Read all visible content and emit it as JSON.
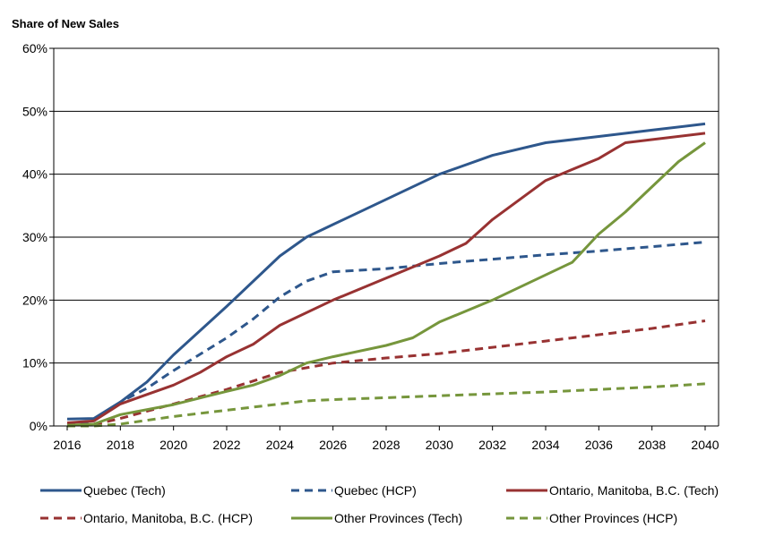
{
  "chart_data": {
    "type": "line",
    "ylabel": "Share of New Sales",
    "xlabel": "",
    "title": "",
    "xlim": [
      2016,
      2040
    ],
    "ylim": [
      0,
      60
    ],
    "x_ticks": [
      "2016",
      "2018",
      "2020",
      "2022",
      "2024",
      "2026",
      "2028",
      "2030",
      "2032",
      "2034",
      "2036",
      "2038",
      "2040"
    ],
    "y_ticks": [
      "0%",
      "10%",
      "20%",
      "30%",
      "40%",
      "50%",
      "60%"
    ],
    "grid": "horizontal",
    "legend_position": "bottom",
    "series": [
      {
        "name": "Quebec (Tech)",
        "color": "#2E578C",
        "dash": "solid",
        "points": [
          [
            2016,
            1.1
          ],
          [
            2017,
            1.2
          ],
          [
            2018,
            3.8
          ],
          [
            2019,
            7
          ],
          [
            2020,
            11.3
          ],
          [
            2022,
            19
          ],
          [
            2024,
            27
          ],
          [
            2025,
            30
          ],
          [
            2026,
            32
          ],
          [
            2028,
            36
          ],
          [
            2030,
            40
          ],
          [
            2032,
            43
          ],
          [
            2034,
            45
          ],
          [
            2036,
            46
          ],
          [
            2038,
            47
          ],
          [
            2040,
            48
          ]
        ]
      },
      {
        "name": "Quebec (HCP)",
        "color": "#2E578C",
        "dash": "dashed",
        "points": [
          [
            2016,
            0.2
          ],
          [
            2017,
            0.8
          ],
          [
            2018,
            3.8
          ],
          [
            2019,
            6
          ],
          [
            2020,
            8.8
          ],
          [
            2022,
            14
          ],
          [
            2023,
            17
          ],
          [
            2024,
            20.5
          ],
          [
            2025,
            23
          ],
          [
            2026,
            24.5
          ],
          [
            2028,
            25
          ],
          [
            2030,
            25.8
          ],
          [
            2032,
            26.5
          ],
          [
            2034,
            27.2
          ],
          [
            2036,
            27.8
          ],
          [
            2038,
            28.5
          ],
          [
            2040,
            29.2
          ]
        ]
      },
      {
        "name": "Ontario, Manitoba, B.C. (Tech)",
        "color": "#983232",
        "dash": "solid",
        "points": [
          [
            2016,
            0.5
          ],
          [
            2017,
            0.8
          ],
          [
            2018,
            3.5
          ],
          [
            2019,
            5
          ],
          [
            2020,
            6.5
          ],
          [
            2021,
            8.5
          ],
          [
            2022,
            11
          ],
          [
            2023,
            13
          ],
          [
            2024,
            16
          ],
          [
            2026,
            20
          ],
          [
            2028,
            23.5
          ],
          [
            2030,
            27
          ],
          [
            2031,
            29
          ],
          [
            2032,
            32.8
          ],
          [
            2034,
            39
          ],
          [
            2036,
            42.5
          ],
          [
            2037,
            45
          ],
          [
            2040,
            46.5
          ]
        ]
      },
      {
        "name": "Ontario, Manitoba, B.C. (HCP)",
        "color": "#983232",
        "dash": "dashed",
        "points": [
          [
            2016,
            0.1
          ],
          [
            2017,
            0.2
          ],
          [
            2018,
            1.2
          ],
          [
            2020,
            3.5
          ],
          [
            2022,
            5.8
          ],
          [
            2024,
            8.5
          ],
          [
            2026,
            10
          ],
          [
            2028,
            10.8
          ],
          [
            2030,
            11.5
          ],
          [
            2032,
            12.5
          ],
          [
            2034,
            13.5
          ],
          [
            2036,
            14.5
          ],
          [
            2038,
            15.5
          ],
          [
            2040,
            16.7
          ]
        ]
      },
      {
        "name": "Other Provinces (Tech)",
        "color": "#76963C",
        "dash": "solid",
        "points": [
          [
            2016,
            0.1
          ],
          [
            2017,
            0.3
          ],
          [
            2018,
            1.8
          ],
          [
            2020,
            3.4
          ],
          [
            2022,
            5.5
          ],
          [
            2023,
            6.5
          ],
          [
            2024,
            8
          ],
          [
            2025,
            10
          ],
          [
            2026,
            11
          ],
          [
            2028,
            12.8
          ],
          [
            2029,
            14
          ],
          [
            2030,
            16.5
          ],
          [
            2032,
            20
          ],
          [
            2034,
            24
          ],
          [
            2035,
            26
          ],
          [
            2036,
            30.5
          ],
          [
            2037,
            34
          ],
          [
            2039,
            42
          ],
          [
            2040,
            45
          ]
        ]
      },
      {
        "name": "Other Provinces (HCP)",
        "color": "#76963C",
        "dash": "dashed",
        "points": [
          [
            2016,
            0
          ],
          [
            2017,
            0
          ],
          [
            2018,
            0.3
          ],
          [
            2020,
            1.5
          ],
          [
            2022,
            2.5
          ],
          [
            2024,
            3.5
          ],
          [
            2025,
            4
          ],
          [
            2026,
            4.2
          ],
          [
            2028,
            4.5
          ],
          [
            2030,
            4.8
          ],
          [
            2032,
            5.1
          ],
          [
            2034,
            5.4
          ],
          [
            2036,
            5.8
          ],
          [
            2038,
            6.2
          ],
          [
            2040,
            6.7
          ]
        ]
      }
    ]
  }
}
